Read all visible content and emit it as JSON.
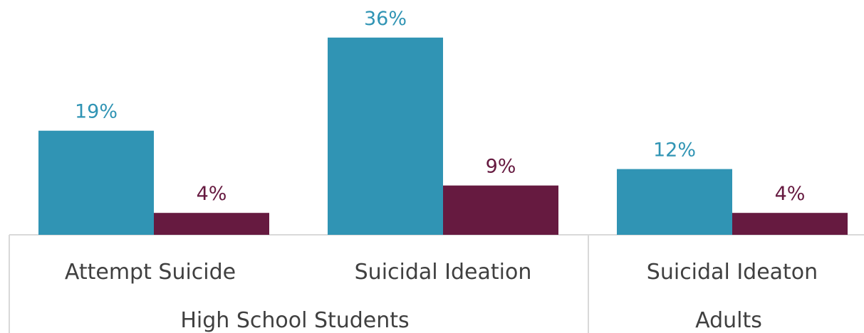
{
  "chart_data": {
    "type": "bar",
    "categories": [
      "Attempt Suicide",
      "Suicidal Ideation",
      "Suicidal Ideaton"
    ],
    "groups": [
      {
        "label": "High School Students",
        "categories": [
          "Attempt Suicide",
          "Suicidal Ideation"
        ]
      },
      {
        "label": "Adults",
        "categories": [
          "Suicidal Ideaton"
        ]
      }
    ],
    "series": [
      {
        "values": [
          19,
          36,
          12
        ],
        "labels": [
          "19%",
          "36%",
          "12%"
        ],
        "color": "#3094B4"
      },
      {
        "values": [
          4,
          9,
          4
        ],
        "labels": [
          "4%",
          "9%",
          "4%"
        ],
        "color": "#661A40"
      }
    ],
    "value_unit": "%",
    "ylim": [
      0,
      40
    ],
    "grid": false,
    "colors": {
      "axis_line": "#D9D9D9",
      "category_text": "#404040",
      "series1_label": "#3094B4",
      "series2_label": "#661A40"
    }
  }
}
